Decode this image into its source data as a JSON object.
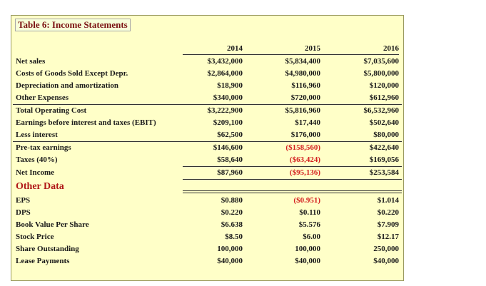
{
  "table": {
    "title": "Table 6: Income Statements",
    "years": [
      "2014",
      "2015",
      "2016"
    ],
    "rows": [
      {
        "label": "Net sales",
        "values": [
          "$3,432,000",
          "$5,834,400",
          "$7,035,600"
        ]
      },
      {
        "label": "Costs of Goods Sold Except Depr.",
        "values": [
          "$2,864,000",
          "$4,980,000",
          "$5,800,000"
        ]
      },
      {
        "label": "Depreciation and amortization",
        "values": [
          "$18,900",
          "$116,960",
          "$120,000"
        ]
      },
      {
        "label": "Other Expenses",
        "values": [
          "$340,000",
          "$720,000",
          "$612,960"
        ]
      },
      {
        "label": "Total Operating Cost",
        "values": [
          "$3,222,900",
          "$5,816,960",
          "$6,532,960"
        ]
      },
      {
        "label": "Earnings before interest and taxes (EBIT)",
        "values": [
          "$209,100",
          "$17,440",
          "$502,640"
        ]
      },
      {
        "label": "Less interest",
        "values": [
          "$62,500",
          "$176,000",
          "$80,000"
        ]
      },
      {
        "label": "Pre-tax earnings",
        "values": [
          "$146,600",
          "($158,560)",
          "$422,640"
        ]
      },
      {
        "label": "Taxes (40%)",
        "values": [
          "$58,640",
          "($63,424)",
          "$169,056"
        ]
      },
      {
        "label": "Net Income",
        "values": [
          "$87,960",
          "($95,136)",
          "$253,584"
        ]
      }
    ],
    "other_data_title": "Other Data",
    "other_rows": [
      {
        "label": "EPS",
        "values": [
          "$0.880",
          "($0.951)",
          "$1.014"
        ]
      },
      {
        "label": "DPS",
        "values": [
          "$0.220",
          "$0.110",
          "$0.220"
        ]
      },
      {
        "label": "Book Value Per Share",
        "values": [
          "$6.638",
          "$5.576",
          "$7.909"
        ]
      },
      {
        "label": "Stock Price",
        "values": [
          "$8.50",
          "$6.00",
          "$12.17"
        ]
      },
      {
        "label": "Share Outstanding",
        "values": [
          "100,000",
          "100,000",
          "250,000"
        ]
      },
      {
        "label": "Lease Payments",
        "values": [
          "$40,000",
          "$40,000",
          "$40,000"
        ]
      }
    ]
  }
}
